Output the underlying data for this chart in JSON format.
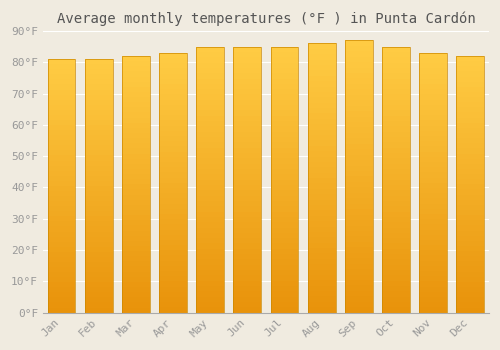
{
  "title": "Average monthly temperatures (°F ) in Punta Cardón",
  "months": [
    "Jan",
    "Feb",
    "Mar",
    "Apr",
    "May",
    "Jun",
    "Jul",
    "Aug",
    "Sep",
    "Oct",
    "Nov",
    "Dec"
  ],
  "values": [
    81,
    81,
    82,
    83,
    85,
    85,
    85,
    86,
    87,
    85,
    83,
    82
  ],
  "bar_color_bottom": "#E8920A",
  "bar_color_top": "#FFCC44",
  "bar_edge_color": "#CC8800",
  "background_color": "#F0EBE0",
  "grid_color": "#FFFFFF",
  "text_color": "#999999",
  "title_color": "#555555",
  "ylim": [
    0,
    90
  ],
  "yticks": [
    0,
    10,
    20,
    30,
    40,
    50,
    60,
    70,
    80,
    90
  ],
  "ytick_labels": [
    "0°F",
    "10°F",
    "20°F",
    "30°F",
    "40°F",
    "50°F",
    "60°F",
    "70°F",
    "80°F",
    "90°F"
  ],
  "title_fontsize": 10,
  "tick_fontsize": 8,
  "bar_width": 0.75,
  "n_grad": 50
}
